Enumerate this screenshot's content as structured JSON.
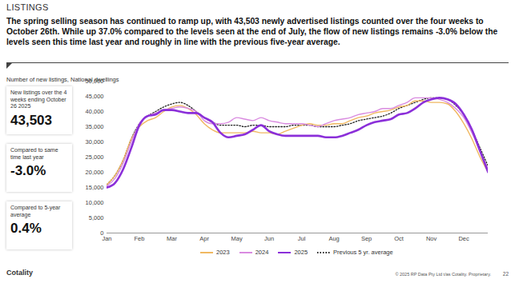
{
  "page": {
    "heading": "LISTINGS",
    "intro": "The spring selling season has continued to ramp up, with 43,503 newly advertised listings counted over the four weeks to October 26th. While up 37.0% compared to the levels seen at the end of July, the flow of new listings remains -3.0% below the levels seen this time last year and roughly in line with the previous five-year average.",
    "stats": [
      {
        "label": "New listings over the 4 weeks ending October 26 2025",
        "value": "43,503"
      },
      {
        "label": "Compared to same time last year",
        "value": "-3.0%"
      },
      {
        "label": "Compared to 5-year average",
        "value": "0.4%"
      }
    ],
    "footer": {
      "brand": "Cotality",
      "copyright": "© 2025 RP Data Pty Ltd t/as Cotality. Proprietary.",
      "page_number": "22"
    }
  },
  "chart_data": {
    "type": "line",
    "subtitle": "Number of new listings, National dwellings",
    "x": [
      0,
      0.25,
      0.5,
      0.75,
      1,
      1.25,
      1.5,
      1.75,
      2,
      2.25,
      2.5,
      2.75,
      3,
      3.25,
      3.5,
      3.75,
      4,
      4.25,
      4.5,
      4.75,
      5,
      5.25,
      5.5,
      5.75,
      6,
      6.25,
      6.5,
      6.75,
      7,
      7.25,
      7.5,
      7.75,
      8,
      8.25,
      8.5,
      8.75,
      9,
      9.25,
      9.5,
      9.75,
      10,
      10.25,
      10.5,
      10.75,
      11,
      11.25,
      11.5,
      11.75
    ],
    "xlim": [
      0,
      11.75
    ],
    "xticks": [
      {
        "value": 0,
        "label": "Jan"
      },
      {
        "value": 1,
        "label": "Feb"
      },
      {
        "value": 2,
        "label": "Mar"
      },
      {
        "value": 3,
        "label": "Apr"
      },
      {
        "value": 4,
        "label": "May"
      },
      {
        "value": 5,
        "label": "Jun"
      },
      {
        "value": 6,
        "label": "Jul"
      },
      {
        "value": 7,
        "label": "Aug"
      },
      {
        "value": 8,
        "label": "Sep"
      },
      {
        "value": 9,
        "label": "Oct"
      },
      {
        "value": 10,
        "label": "Nov"
      },
      {
        "value": 11,
        "label": "Dec"
      }
    ],
    "ylim": [
      0,
      50000
    ],
    "yticks": [
      0,
      {
        "value": 5000,
        "label": "5,000"
      },
      {
        "value": 10000,
        "label": "10,000"
      },
      {
        "value": 15000,
        "label": "15,000"
      },
      {
        "value": 20000,
        "label": "20,000"
      },
      {
        "value": 25000,
        "label": "25,000"
      },
      {
        "value": 30000,
        "label": "30,000"
      },
      {
        "value": 35000,
        "label": "35,000"
      },
      {
        "value": 40000,
        "label": "40,000"
      },
      {
        "value": 45000,
        "label": "45,000"
      },
      {
        "value": 50000,
        "label": "50,000"
      }
    ],
    "grid": false,
    "legend": "bottom",
    "series": [
      {
        "name": "2023",
        "color": "#f0b861",
        "line_style": "solid",
        "values": [
          16000,
          19000,
          24000,
          31000,
          35000,
          37000,
          38000,
          40000,
          41500,
          42000,
          41000,
          39000,
          36000,
          34000,
          33000,
          33000,
          33000,
          33000,
          33500,
          33000,
          33000,
          32500,
          33500,
          34500,
          35500,
          36000,
          35500,
          35500,
          36000,
          36000,
          37000,
          38000,
          38500,
          39500,
          40000,
          40500,
          41500,
          42000,
          43500,
          43500,
          43000,
          43000,
          42500,
          40000,
          36000,
          31000,
          25000,
          20000
        ]
      },
      {
        "name": "2024",
        "color": "#d98be0",
        "line_style": "solid",
        "values": [
          15500,
          18000,
          23000,
          30000,
          36000,
          38500,
          39500,
          40500,
          41000,
          41500,
          41000,
          40000,
          37000,
          36000,
          36000,
          36500,
          38000,
          37500,
          37000,
          38000,
          37000,
          36500,
          36000,
          36000,
          36000,
          35500,
          35000,
          36000,
          37000,
          37500,
          38000,
          39000,
          39500,
          40000,
          41000,
          41000,
          42000,
          43000,
          44500,
          44500,
          44500,
          44000,
          43000,
          41000,
          38000,
          33000,
          27000,
          21000
        ]
      },
      {
        "name": "2025",
        "color": "#8b2fd9",
        "line_style": "solid",
        "values": [
          15000,
          16500,
          21000,
          28000,
          35500,
          38500,
          39000,
          40500,
          40500,
          40000,
          39500,
          39500,
          38000,
          36500,
          33000,
          31500,
          32000,
          32500,
          34000,
          35500,
          33500,
          32500,
          32000,
          32000,
          32000,
          32000,
          32000,
          31500,
          31500,
          32000,
          33000,
          34000,
          35500,
          36500,
          37000,
          37500,
          39000,
          39500,
          41000,
          43000,
          44000,
          44500,
          44000,
          42500,
          39000,
          34000,
          27000,
          20000
        ]
      },
      {
        "name": "Previous 5 yr. average",
        "color": "#222222",
        "line_style": "dotted",
        "values": [
          16000,
          19000,
          24000,
          31000,
          36000,
          38500,
          40000,
          41500,
          42500,
          43000,
          42000,
          40000,
          38000,
          36500,
          35500,
          35500,
          35500,
          35000,
          35500,
          35500,
          35000,
          35000,
          35000,
          35500,
          35500,
          35500,
          35000,
          35000,
          35000,
          35500,
          36000,
          37000,
          37500,
          38000,
          38500,
          39500,
          41000,
          42000,
          43000,
          44000,
          44500,
          44500,
          44000,
          42000,
          39000,
          34000,
          28000,
          22000
        ]
      }
    ]
  }
}
